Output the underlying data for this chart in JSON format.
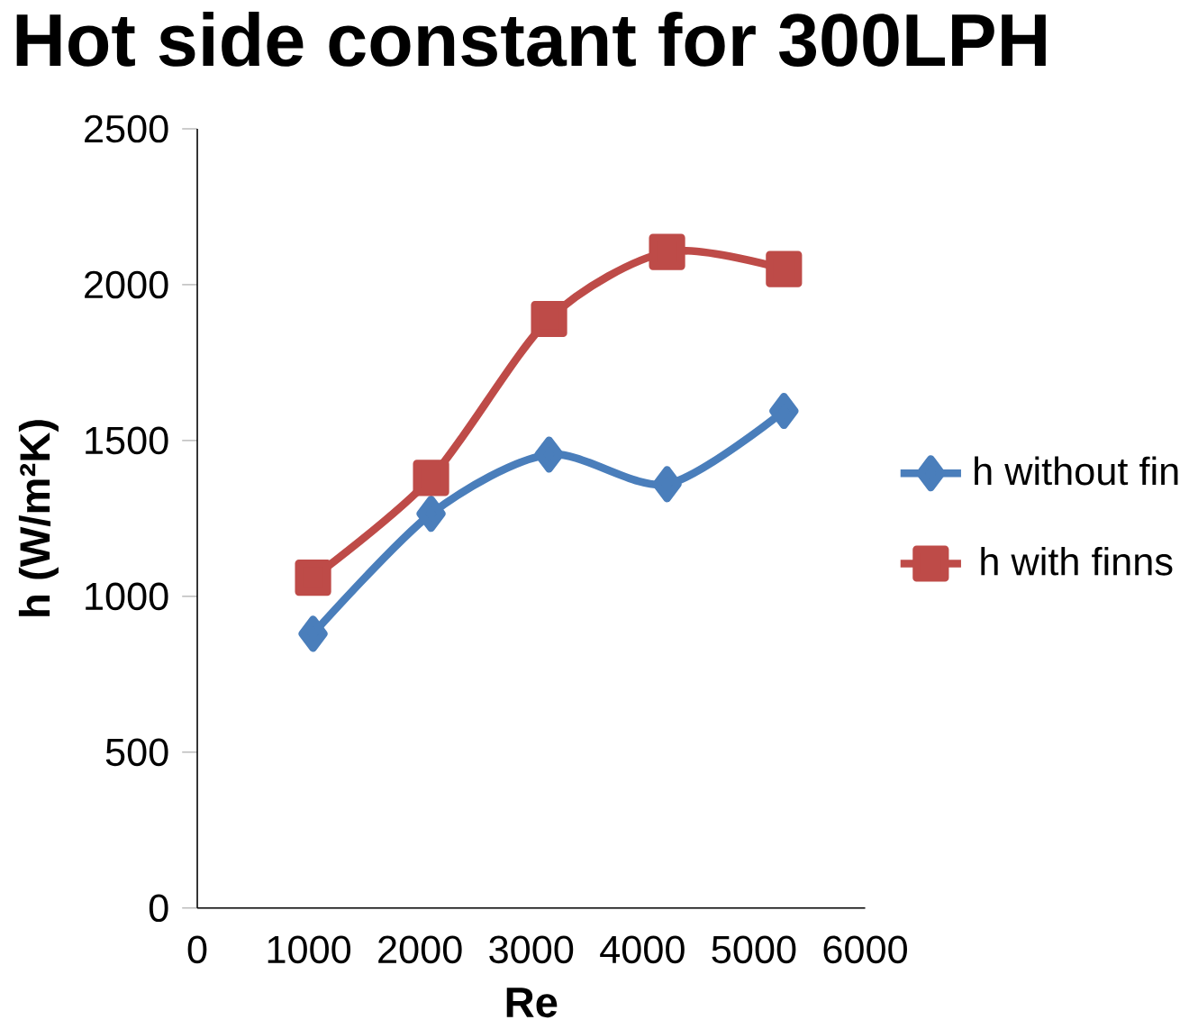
{
  "chart_data": {
    "type": "line",
    "title": "Hot side constant for 300LPH",
    "xlabel": "Re",
    "ylabel": "h (W/m²K)",
    "x": [
      1040,
      2100,
      3160,
      4220,
      5270
    ],
    "series": [
      {
        "name": "h without fin",
        "color": "#4a7ebb",
        "marker": "diamond",
        "values": [
          880,
          1265,
          1455,
          1360,
          1595
        ]
      },
      {
        "name": "h with finns",
        "color": "#be4b48",
        "marker": "square",
        "values": [
          1060,
          1380,
          1890,
          2105,
          2050
        ]
      }
    ],
    "xlim": [
      0,
      6000
    ],
    "xticks": [
      0,
      1000,
      2000,
      3000,
      4000,
      5000,
      6000
    ],
    "ylim": [
      0,
      2500
    ],
    "yticks": [
      0,
      500,
      1000,
      1500,
      2000,
      2500
    ],
    "grid": false,
    "legend": "right",
    "line_style": "solid"
  }
}
